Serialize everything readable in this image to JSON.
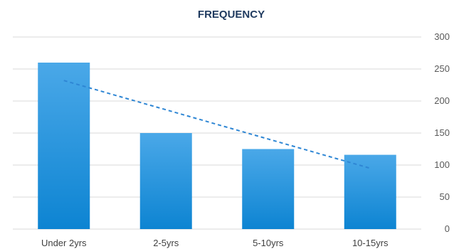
{
  "chart_data": {
    "type": "bar",
    "title": "FREQUENCY",
    "categories": [
      "Under 2yrs",
      "2-5yrs",
      "5-10yrs",
      "10-15yrs"
    ],
    "values": [
      260,
      150,
      125,
      116
    ],
    "ylim": [
      0,
      300
    ],
    "yticks": [
      "0",
      "50",
      "100",
      "150",
      "200",
      "250",
      "300"
    ],
    "y_axis_side": "right",
    "grid": true,
    "trendline": {
      "type": "linear",
      "style": "dashed",
      "start": 232,
      "end": 95
    },
    "colors": {
      "bar_top": "#4aa8e8",
      "bar_bottom": "#0d84d2",
      "trendline": "#2e86d4"
    }
  }
}
